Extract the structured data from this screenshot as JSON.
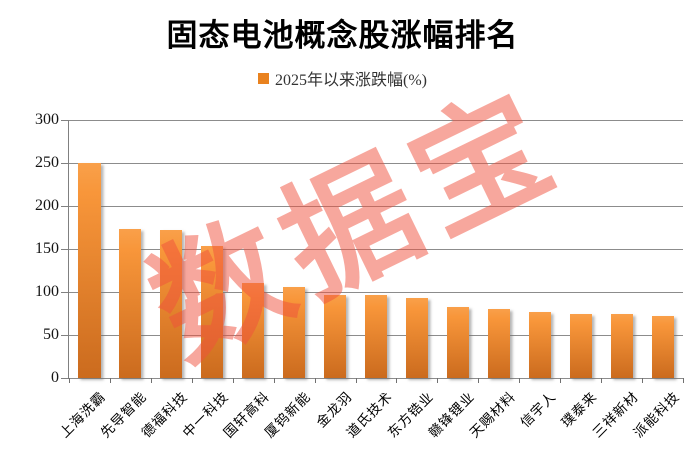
{
  "title": "固态电池概念股涨幅排名",
  "legend": {
    "label": "2025年以来涨跌幅(%)",
    "swatch_color": "#E9821F"
  },
  "watermark": {
    "text": "数据宝",
    "color": "rgba(240,80,60,0.5)"
  },
  "colors": {
    "bar_gradient_top": "#F8963A",
    "bar_gradient_bottom": "#CB6B1E",
    "gridline": "#8C8C8C",
    "axis": "#707070",
    "title_text": "#000000",
    "tick_label_text": "#141414"
  },
  "chart_data": {
    "type": "bar",
    "title": "固态电池概念股涨幅排名",
    "series_name": "2025年以来涨跌幅(%)",
    "categories": [
      "上海洗霸",
      "先导智能",
      "德福科技",
      "中一科技",
      "国轩高科",
      "厦钨新能",
      "金龙羽",
      "道氏技术",
      "东方锆业",
      "赣锋锂业",
      "天赐材料",
      "信宇人",
      "璞泰来",
      "三祥新材",
      "派能科技"
    ],
    "values": [
      250,
      173,
      172,
      153,
      110,
      106,
      97,
      96,
      93,
      83,
      80,
      77,
      75,
      74,
      72
    ],
    "xlabel": "",
    "ylabel": "",
    "ylim": [
      0,
      300
    ],
    "yticks": [
      0,
      50,
      100,
      150,
      200,
      250,
      300
    ],
    "grid": true,
    "legend_position": "top-center",
    "x_tick_label_rotation_deg": 45
  }
}
